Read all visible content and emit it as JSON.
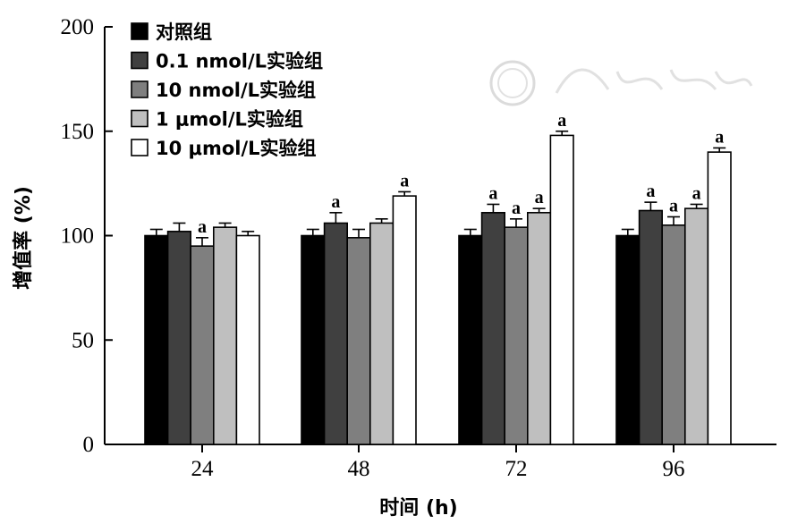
{
  "chart_data": {
    "type": "bar",
    "ylabel": "增值率 (%)",
    "xlabel": "时间 (h)",
    "ylim": [
      0,
      200
    ],
    "yticks": [
      0,
      50,
      100,
      150,
      200
    ],
    "categories": [
      "24",
      "48",
      "72",
      "96"
    ],
    "legend_position": "top-left",
    "series": [
      {
        "name": "对照组",
        "color": "#000000",
        "values": [
          100,
          100,
          100,
          100
        ],
        "errors": [
          3,
          3,
          3,
          3
        ],
        "labels": [
          "",
          "",
          "",
          ""
        ]
      },
      {
        "name": "0.1 nmol/L实验组",
        "color": "#404040",
        "values": [
          102,
          106,
          111,
          112
        ],
        "errors": [
          4,
          5,
          4,
          4
        ],
        "labels": [
          "",
          "a",
          "a",
          "a"
        ]
      },
      {
        "name": "10 nmol/L实验组",
        "color": "#7f7f7f",
        "values": [
          95,
          99,
          104,
          105
        ],
        "errors": [
          4,
          4,
          4,
          4
        ],
        "labels": [
          "a",
          "",
          "a",
          "a"
        ]
      },
      {
        "name": "1 μmol/L实验组",
        "color": "#bfbfbf",
        "values": [
          104,
          106,
          111,
          113
        ],
        "errors": [
          2,
          2,
          2,
          2
        ],
        "labels": [
          "",
          "",
          "a",
          "a"
        ]
      },
      {
        "name": "10 μmol/L实验组",
        "color": "#ffffff",
        "values": [
          100,
          119,
          148,
          140
        ],
        "errors": [
          2,
          2,
          2,
          2
        ],
        "labels": [
          "",
          "a",
          "a",
          "a"
        ]
      }
    ]
  }
}
